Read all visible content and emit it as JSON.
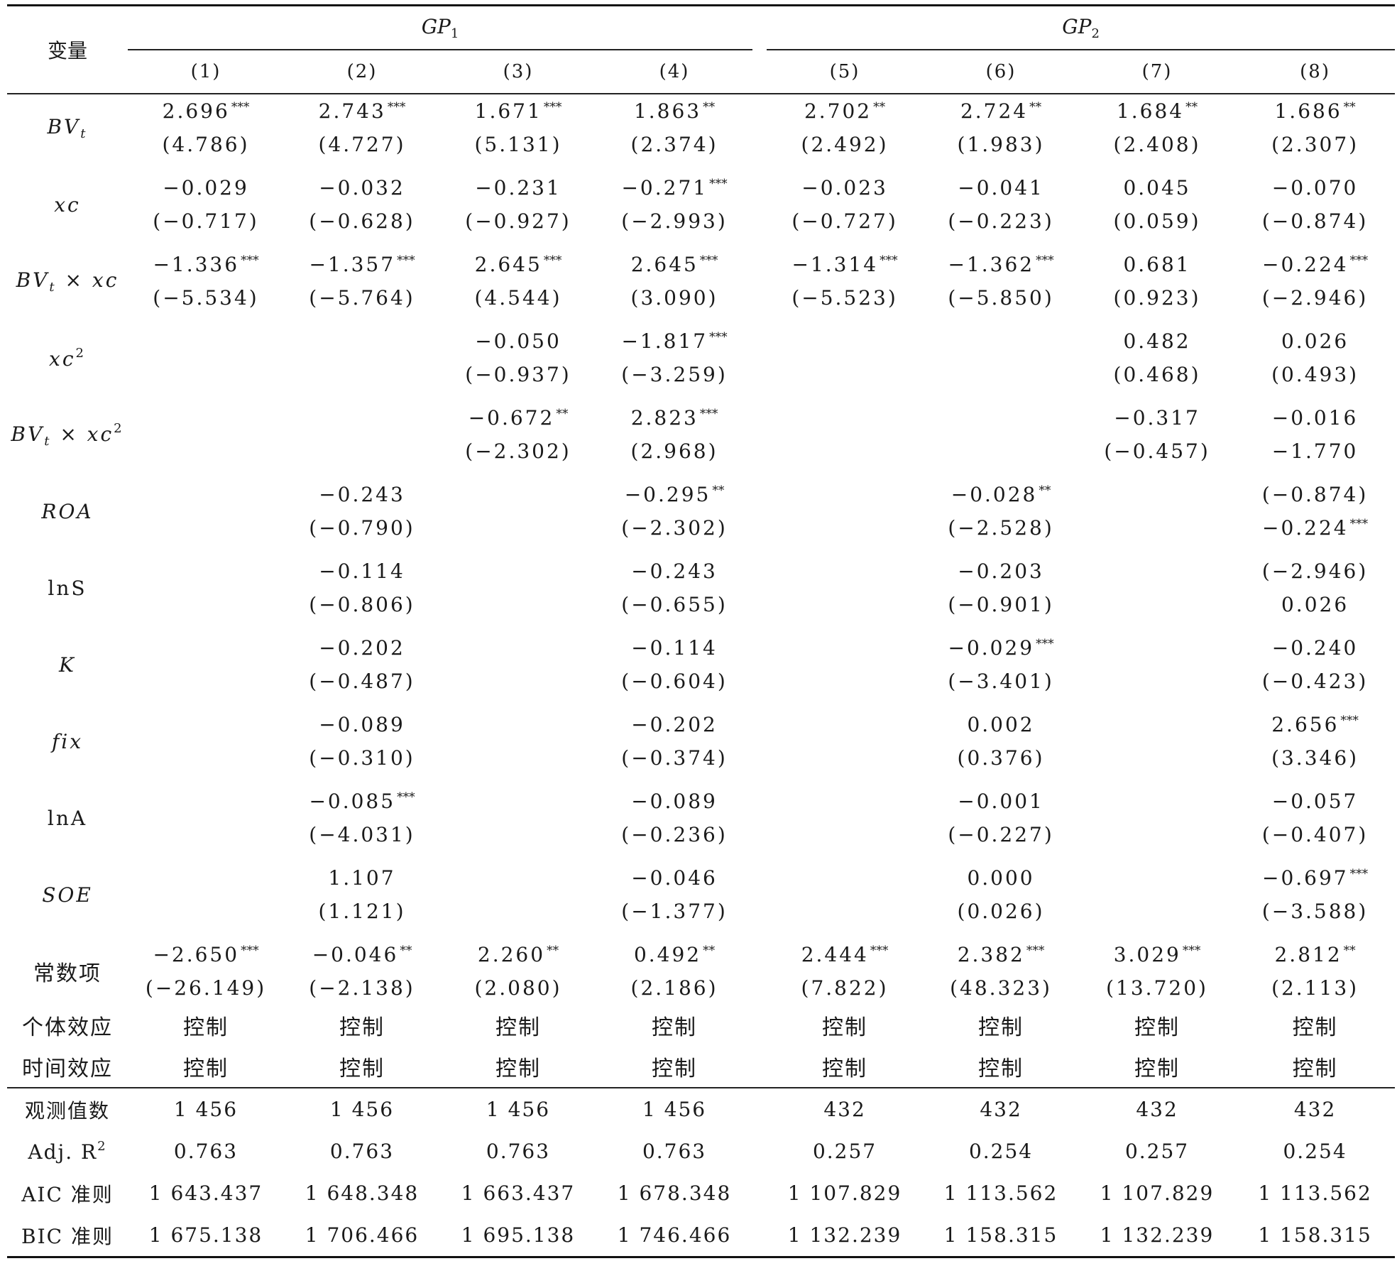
{
  "header": {
    "variable_label": "变量",
    "group1": "GP",
    "group1_sub": "1",
    "group2": "GP",
    "group2_sub": "2",
    "columns": [
      "(1)",
      "(2)",
      "(3)",
      "(4)",
      "(5)",
      "(6)",
      "(7)",
      "(8)"
    ]
  },
  "rows": {
    "bvt": {
      "label_main": "BV",
      "label_sub": "t",
      "coef": [
        "2.696",
        "2.743",
        "1.671",
        "1.863",
        "2.702",
        "2.724",
        "1.684",
        "1.686"
      ],
      "stars": [
        "***",
        "***",
        "***",
        "**",
        "**",
        "**",
        "**",
        "**"
      ],
      "tstat": [
        "(4.786)",
        "(4.727)",
        "(5.131)",
        "(2.374)",
        "(2.492)",
        "(1.983)",
        "(2.408)",
        "(2.307)"
      ]
    },
    "xc": {
      "label": "xc",
      "coef": [
        "−0.029",
        "−0.032",
        "−0.231",
        "−0.271",
        "−0.023",
        "−0.041",
        "0.045",
        "−0.070"
      ],
      "stars": [
        "",
        "",
        "",
        "***",
        "",
        "",
        "",
        ""
      ],
      "tstat": [
        "(−0.717)",
        "(−0.628)",
        "(−0.927)",
        "(−2.993)",
        "(−0.727)",
        "(−0.223)",
        "(0.059)",
        "(−0.874)"
      ]
    },
    "bvt_xc": {
      "label_main": "BV",
      "label_sub": "t",
      "label_rest": " × xc",
      "coef": [
        "−1.336",
        "−1.357",
        "2.645",
        "2.645",
        "−1.314",
        "−1.362",
        "0.681",
        "−0.224"
      ],
      "stars": [
        "***",
        "***",
        "***",
        "***",
        "***",
        "***",
        "",
        "***"
      ],
      "tstat": [
        "(−5.534)",
        "(−5.764)",
        "(4.544)",
        "(3.090)",
        "(−5.523)",
        "(−5.850)",
        "(0.923)",
        "(−2.946)"
      ]
    },
    "xc2": {
      "label_main": "xc",
      "label_sup": "2",
      "coef": [
        "",
        "",
        "−0.050",
        "−1.817",
        "",
        "",
        "0.482",
        "0.026"
      ],
      "stars": [
        "",
        "",
        "",
        "***",
        "",
        "",
        "",
        ""
      ],
      "tstat": [
        "",
        "",
        "(−0.937)",
        "(−3.259)",
        "",
        "",
        "(0.468)",
        "(0.493)"
      ]
    },
    "bvt_xc2": {
      "label_main": "BV",
      "label_sub": "t",
      "label_rest": " × xc",
      "label_sup": "2",
      "coef": [
        "",
        "",
        "−0.672",
        "2.823",
        "",
        "",
        "−0.317",
        "−0.016"
      ],
      "stars": [
        "",
        "",
        "**",
        "***",
        "",
        "",
        "",
        ""
      ],
      "tstat": [
        "",
        "",
        "(−2.302)",
        "(2.968)",
        "",
        "",
        "(−0.457)",
        "−1.770"
      ]
    },
    "roa": {
      "label": "ROA",
      "coef": [
        "",
        "−0.243",
        "",
        "−0.295",
        "",
        "−0.028",
        "",
        "(−0.874)"
      ],
      "stars": [
        "",
        "",
        "",
        "**",
        "",
        "**",
        "",
        ""
      ],
      "tstat": [
        "",
        "(−0.790)",
        "",
        "(−2.302)",
        "",
        "(−2.528)",
        "",
        "−0.224"
      ],
      "tstars": [
        "",
        "",
        "",
        "",
        "",
        "",
        "",
        "***"
      ]
    },
    "lns": {
      "label": "lnS",
      "coef": [
        "",
        "−0.114",
        "",
        "−0.243",
        "",
        "−0.203",
        "",
        "(−2.946)"
      ],
      "stars": [
        "",
        "",
        "",
        "",
        "",
        "",
        "",
        ""
      ],
      "tstat": [
        "",
        "(−0.806)",
        "",
        "(−0.655)",
        "",
        "(−0.901)",
        "",
        "0.026"
      ]
    },
    "k": {
      "label": "K",
      "coef": [
        "",
        "−0.202",
        "",
        "−0.114",
        "",
        "−0.029",
        "",
        "−0.240"
      ],
      "stars": [
        "",
        "",
        "",
        "",
        "",
        "***",
        "",
        ""
      ],
      "tstat": [
        "",
        "(−0.487)",
        "",
        "(−0.604)",
        "",
        "(−3.401)",
        "",
        "(−0.423)"
      ]
    },
    "fix": {
      "label": "fix",
      "coef": [
        "",
        "−0.089",
        "",
        "−0.202",
        "",
        "0.002",
        "",
        "2.656"
      ],
      "stars": [
        "",
        "",
        "",
        "",
        "",
        "",
        "",
        "***"
      ],
      "tstat": [
        "",
        "(−0.310)",
        "",
        "(−0.374)",
        "",
        "(0.376)",
        "",
        "(3.346)"
      ]
    },
    "lna": {
      "label": "lnA",
      "coef": [
        "",
        "−0.085",
        "",
        "−0.089",
        "",
        "−0.001",
        "",
        "−0.057"
      ],
      "stars": [
        "",
        "***",
        "",
        "",
        "",
        "",
        "",
        ""
      ],
      "tstat": [
        "",
        "(−4.031)",
        "",
        "(−0.236)",
        "",
        "(−0.227)",
        "",
        "(−0.407)"
      ]
    },
    "soe": {
      "label": "SOE",
      "coef": [
        "",
        "1.107",
        "",
        "−0.046",
        "",
        "0.000",
        "",
        "−0.697"
      ],
      "stars": [
        "",
        "",
        "",
        "",
        "",
        "",
        "",
        "***"
      ],
      "tstat": [
        "",
        "(1.121)",
        "",
        "(−1.377)",
        "",
        "(0.026)",
        "",
        "(−3.588)"
      ]
    },
    "const": {
      "label": "常数项",
      "coef": [
        "−2.650",
        "−0.046",
        "2.260",
        "0.492",
        "2.444",
        "2.382",
        "3.029",
        "2.812"
      ],
      "stars": [
        "***",
        "**",
        "**",
        "**",
        "***",
        "***",
        "***",
        "**"
      ],
      "tstat": [
        "(−26.149)",
        "(−2.138)",
        "(2.080)",
        "(2.186)",
        "(7.822)",
        "(48.323)",
        "(13.720)",
        "(2.113)"
      ]
    }
  },
  "controls": [
    {
      "label": "个体效应",
      "values": [
        "控制",
        "控制",
        "控制",
        "控制",
        "控制",
        "控制",
        "控制",
        "控制"
      ]
    },
    {
      "label": "时间效应",
      "values": [
        "控制",
        "控制",
        "控制",
        "控制",
        "控制",
        "控制",
        "控制",
        "控制"
      ]
    }
  ],
  "stats": [
    {
      "key": "obs",
      "label": "观测值数",
      "values": [
        "1 456",
        "1 456",
        "1 456",
        "1 456",
        "432",
        "432",
        "432",
        "432"
      ]
    },
    {
      "key": "adjr2",
      "label": "Adj. R",
      "label_sup": "2",
      "values": [
        "0.763",
        "0.763",
        "0.763",
        "0.763",
        "0.257",
        "0.254",
        "0.257",
        "0.254"
      ]
    },
    {
      "key": "aic",
      "label": "AIC 准则",
      "values": [
        "1 643.437",
        "1 648.348",
        "1 663.437",
        "1 678.348",
        "1 107.829",
        "1 113.562",
        "1 107.829",
        "1 113.562"
      ]
    },
    {
      "key": "bic",
      "label": "BIC 准则",
      "values": [
        "1 675.138",
        "1 706.466",
        "1 695.138",
        "1 746.466",
        "1 132.239",
        "1 158.315",
        "1 132.239",
        "1 158.315"
      ]
    }
  ]
}
